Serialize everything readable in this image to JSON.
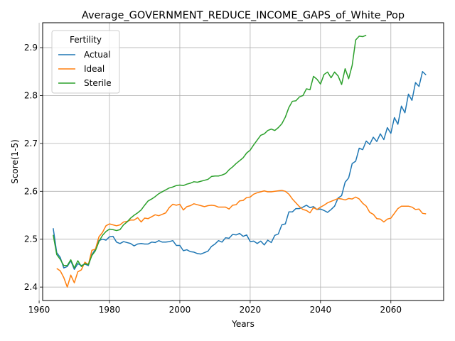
{
  "chart_data": {
    "type": "line",
    "title": "Average_GOVERNMENT_REDUCE_INCOME_GAPS_of_White_Pop",
    "xlabel": "Years",
    "ylabel": "Score(1-5)",
    "xlim": [
      1961,
      2075
    ],
    "ylim": [
      2.372,
      2.952
    ],
    "x_ticks": [
      1960,
      1980,
      2000,
      2020,
      2040,
      2060
    ],
    "x_tick_labels": [
      "1960",
      "1980",
      "2000",
      "2020",
      "2040",
      "2060"
    ],
    "y_ticks": [
      2.4,
      2.5,
      2.6,
      2.7,
      2.8,
      2.9
    ],
    "y_tick_labels": [
      "2.4",
      "2.5",
      "2.6",
      "2.7",
      "2.8",
      "2.9"
    ],
    "grid": true,
    "legend": {
      "title": "Fertility",
      "placement": "top-left"
    },
    "series": [
      {
        "name": "Actual",
        "color": "#1f77b4",
        "points": [
          [
            1964,
            2.523
          ],
          [
            1965,
            2.472
          ],
          [
            1966,
            2.462
          ],
          [
            1967,
            2.44
          ],
          [
            1968,
            2.443
          ],
          [
            1969,
            2.455
          ],
          [
            1970,
            2.437
          ],
          [
            1971,
            2.449
          ],
          [
            1972,
            2.445
          ],
          [
            1973,
            2.448
          ],
          [
            1974,
            2.445
          ],
          [
            1975,
            2.468
          ],
          [
            1976,
            2.479
          ],
          [
            1977,
            2.497
          ],
          [
            1978,
            2.5
          ],
          [
            1979,
            2.498
          ],
          [
            1980,
            2.505
          ],
          [
            1981,
            2.506
          ],
          [
            1982,
            2.494
          ],
          [
            1983,
            2.491
          ],
          [
            1984,
            2.495
          ],
          [
            1985,
            2.493
          ],
          [
            1986,
            2.491
          ],
          [
            1987,
            2.486
          ],
          [
            1988,
            2.49
          ],
          [
            1989,
            2.491
          ],
          [
            1990,
            2.49
          ],
          [
            1991,
            2.49
          ],
          [
            1992,
            2.494
          ],
          [
            1993,
            2.493
          ],
          [
            1994,
            2.497
          ],
          [
            1995,
            2.494
          ],
          [
            1996,
            2.494
          ],
          [
            1997,
            2.495
          ],
          [
            1998,
            2.497
          ],
          [
            1999,
            2.487
          ],
          [
            2000,
            2.487
          ],
          [
            2001,
            2.476
          ],
          [
            2002,
            2.478
          ],
          [
            2003,
            2.474
          ],
          [
            2004,
            2.473
          ],
          [
            2005,
            2.47
          ],
          [
            2006,
            2.469
          ],
          [
            2007,
            2.472
          ],
          [
            2008,
            2.475
          ],
          [
            2009,
            2.485
          ],
          [
            2010,
            2.49
          ],
          [
            2011,
            2.497
          ],
          [
            2012,
            2.494
          ],
          [
            2013,
            2.503
          ],
          [
            2014,
            2.502
          ],
          [
            2015,
            2.51
          ],
          [
            2016,
            2.509
          ],
          [
            2017,
            2.512
          ],
          [
            2018,
            2.506
          ],
          [
            2019,
            2.509
          ],
          [
            2020,
            2.495
          ],
          [
            2021,
            2.496
          ],
          [
            2022,
            2.491
          ],
          [
            2023,
            2.496
          ],
          [
            2024,
            2.488
          ],
          [
            2025,
            2.498
          ],
          [
            2026,
            2.493
          ],
          [
            2027,
            2.508
          ],
          [
            2028,
            2.511
          ],
          [
            2029,
            2.53
          ],
          [
            2030,
            2.532
          ],
          [
            2031,
            2.557
          ],
          [
            2032,
            2.557
          ],
          [
            2033,
            2.564
          ],
          [
            2034,
            2.564
          ],
          [
            2035,
            2.567
          ],
          [
            2036,
            2.571
          ],
          [
            2037,
            2.566
          ],
          [
            2038,
            2.568
          ],
          [
            2039,
            2.562
          ],
          [
            2040,
            2.563
          ],
          [
            2041,
            2.56
          ],
          [
            2042,
            2.556
          ],
          [
            2043,
            2.562
          ],
          [
            2044,
            2.569
          ],
          [
            2045,
            2.586
          ],
          [
            2046,
            2.591
          ],
          [
            2047,
            2.619
          ],
          [
            2048,
            2.628
          ],
          [
            2049,
            2.658
          ],
          [
            2050,
            2.663
          ],
          [
            2051,
            2.69
          ],
          [
            2052,
            2.687
          ],
          [
            2053,
            2.705
          ],
          [
            2054,
            2.698
          ],
          [
            2055,
            2.713
          ],
          [
            2056,
            2.704
          ],
          [
            2057,
            2.72
          ],
          [
            2058,
            2.708
          ],
          [
            2059,
            2.733
          ],
          [
            2060,
            2.721
          ],
          [
            2061,
            2.754
          ],
          [
            2062,
            2.74
          ],
          [
            2063,
            2.778
          ],
          [
            2064,
            2.764
          ],
          [
            2065,
            2.803
          ],
          [
            2066,
            2.79
          ],
          [
            2067,
            2.827
          ],
          [
            2068,
            2.819
          ],
          [
            2069,
            2.85
          ],
          [
            2070,
            2.843
          ]
        ]
      },
      {
        "name": "Ideal",
        "color": "#ff7f0e",
        "points": [
          [
            1965,
            2.439
          ],
          [
            1966,
            2.434
          ],
          [
            1967,
            2.42
          ],
          [
            1968,
            2.4
          ],
          [
            1969,
            2.425
          ],
          [
            1970,
            2.409
          ],
          [
            1971,
            2.432
          ],
          [
            1972,
            2.436
          ],
          [
            1973,
            2.452
          ],
          [
            1974,
            2.447
          ],
          [
            1975,
            2.477
          ],
          [
            1976,
            2.479
          ],
          [
            1977,
            2.505
          ],
          [
            1978,
            2.514
          ],
          [
            1979,
            2.528
          ],
          [
            1980,
            2.532
          ],
          [
            1981,
            2.53
          ],
          [
            1982,
            2.528
          ],
          [
            1983,
            2.53
          ],
          [
            1984,
            2.536
          ],
          [
            1985,
            2.537
          ],
          [
            1986,
            2.54
          ],
          [
            1987,
            2.54
          ],
          [
            1988,
            2.545
          ],
          [
            1989,
            2.536
          ],
          [
            1990,
            2.544
          ],
          [
            1991,
            2.543
          ],
          [
            1992,
            2.547
          ],
          [
            1993,
            2.551
          ],
          [
            1994,
            2.549
          ],
          [
            1995,
            2.552
          ],
          [
            1996,
            2.555
          ],
          [
            1997,
            2.566
          ],
          [
            1998,
            2.573
          ],
          [
            1999,
            2.571
          ],
          [
            2000,
            2.573
          ],
          [
            2001,
            2.561
          ],
          [
            2002,
            2.568
          ],
          [
            2003,
            2.57
          ],
          [
            2004,
            2.574
          ],
          [
            2005,
            2.572
          ],
          [
            2006,
            2.57
          ],
          [
            2007,
            2.568
          ],
          [
            2008,
            2.57
          ],
          [
            2009,
            2.571
          ],
          [
            2010,
            2.57
          ],
          [
            2011,
            2.567
          ],
          [
            2012,
            2.567
          ],
          [
            2013,
            2.567
          ],
          [
            2014,
            2.563
          ],
          [
            2015,
            2.571
          ],
          [
            2016,
            2.572
          ],
          [
            2017,
            2.58
          ],
          [
            2018,
            2.581
          ],
          [
            2019,
            2.587
          ],
          [
            2020,
            2.588
          ],
          [
            2021,
            2.594
          ],
          [
            2022,
            2.597
          ],
          [
            2023,
            2.599
          ],
          [
            2024,
            2.601
          ],
          [
            2025,
            2.599
          ],
          [
            2026,
            2.599
          ],
          [
            2027,
            2.6
          ],
          [
            2028,
            2.601
          ],
          [
            2029,
            2.602
          ],
          [
            2030,
            2.6
          ],
          [
            2031,
            2.594
          ],
          [
            2032,
            2.584
          ],
          [
            2033,
            2.576
          ],
          [
            2034,
            2.568
          ],
          [
            2035,
            2.562
          ],
          [
            2036,
            2.56
          ],
          [
            2037,
            2.555
          ],
          [
            2038,
            2.566
          ],
          [
            2039,
            2.562
          ],
          [
            2040,
            2.567
          ],
          [
            2041,
            2.571
          ],
          [
            2042,
            2.576
          ],
          [
            2043,
            2.579
          ],
          [
            2044,
            2.582
          ],
          [
            2045,
            2.585
          ],
          [
            2046,
            2.584
          ],
          [
            2047,
            2.582
          ],
          [
            2048,
            2.585
          ],
          [
            2049,
            2.584
          ],
          [
            2050,
            2.588
          ],
          [
            2051,
            2.584
          ],
          [
            2052,
            2.575
          ],
          [
            2053,
            2.569
          ],
          [
            2054,
            2.556
          ],
          [
            2055,
            2.552
          ],
          [
            2056,
            2.543
          ],
          [
            2057,
            2.542
          ],
          [
            2058,
            2.536
          ],
          [
            2059,
            2.542
          ],
          [
            2060,
            2.544
          ],
          [
            2061,
            2.554
          ],
          [
            2062,
            2.564
          ],
          [
            2063,
            2.569
          ],
          [
            2064,
            2.569
          ],
          [
            2065,
            2.569
          ],
          [
            2066,
            2.567
          ],
          [
            2067,
            2.562
          ],
          [
            2068,
            2.563
          ],
          [
            2069,
            2.554
          ],
          [
            2070,
            2.553
          ]
        ]
      },
      {
        "name": "Sterile",
        "color": "#2ca02c",
        "points": [
          [
            1964,
            2.509
          ],
          [
            1965,
            2.468
          ],
          [
            1966,
            2.458
          ],
          [
            1967,
            2.445
          ],
          [
            1968,
            2.445
          ],
          [
            1969,
            2.457
          ],
          [
            1970,
            2.44
          ],
          [
            1971,
            2.455
          ],
          [
            1972,
            2.443
          ],
          [
            1973,
            2.449
          ],
          [
            1974,
            2.447
          ],
          [
            1975,
            2.466
          ],
          [
            1976,
            2.476
          ],
          [
            1977,
            2.495
          ],
          [
            1978,
            2.508
          ],
          [
            1979,
            2.516
          ],
          [
            1980,
            2.521
          ],
          [
            1981,
            2.52
          ],
          [
            1982,
            2.518
          ],
          [
            1983,
            2.52
          ],
          [
            1984,
            2.53
          ],
          [
            1985,
            2.536
          ],
          [
            1986,
            2.544
          ],
          [
            1987,
            2.55
          ],
          [
            1988,
            2.555
          ],
          [
            1989,
            2.561
          ],
          [
            1990,
            2.571
          ],
          [
            1991,
            2.58
          ],
          [
            1992,
            2.584
          ],
          [
            1993,
            2.589
          ],
          [
            1994,
            2.595
          ],
          [
            1995,
            2.599
          ],
          [
            1996,
            2.603
          ],
          [
            1997,
            2.607
          ],
          [
            1998,
            2.609
          ],
          [
            1999,
            2.612
          ],
          [
            2000,
            2.613
          ],
          [
            2001,
            2.612
          ],
          [
            2002,
            2.615
          ],
          [
            2003,
            2.617
          ],
          [
            2004,
            2.62
          ],
          [
            2005,
            2.619
          ],
          [
            2006,
            2.621
          ],
          [
            2007,
            2.623
          ],
          [
            2008,
            2.625
          ],
          [
            2009,
            2.631
          ],
          [
            2010,
            2.632
          ],
          [
            2011,
            2.632
          ],
          [
            2012,
            2.634
          ],
          [
            2013,
            2.637
          ],
          [
            2014,
            2.645
          ],
          [
            2015,
            2.651
          ],
          [
            2016,
            2.658
          ],
          [
            2017,
            2.664
          ],
          [
            2018,
            2.67
          ],
          [
            2019,
            2.68
          ],
          [
            2020,
            2.686
          ],
          [
            2021,
            2.697
          ],
          [
            2022,
            2.707
          ],
          [
            2023,
            2.717
          ],
          [
            2024,
            2.72
          ],
          [
            2025,
            2.727
          ],
          [
            2026,
            2.73
          ],
          [
            2027,
            2.727
          ],
          [
            2028,
            2.733
          ],
          [
            2029,
            2.741
          ],
          [
            2030,
            2.755
          ],
          [
            2031,
            2.775
          ],
          [
            2032,
            2.788
          ],
          [
            2033,
            2.789
          ],
          [
            2034,
            2.797
          ],
          [
            2035,
            2.8
          ],
          [
            2036,
            2.814
          ],
          [
            2037,
            2.812
          ],
          [
            2038,
            2.84
          ],
          [
            2039,
            2.834
          ],
          [
            2040,
            2.824
          ],
          [
            2041,
            2.844
          ],
          [
            2042,
            2.849
          ],
          [
            2043,
            2.837
          ],
          [
            2044,
            2.849
          ],
          [
            2045,
            2.841
          ],
          [
            2046,
            2.823
          ],
          [
            2047,
            2.856
          ],
          [
            2048,
            2.835
          ],
          [
            2049,
            2.863
          ],
          [
            2050,
            2.916
          ],
          [
            2051,
            2.924
          ],
          [
            2052,
            2.923
          ],
          [
            2053,
            2.926
          ]
        ]
      }
    ]
  }
}
